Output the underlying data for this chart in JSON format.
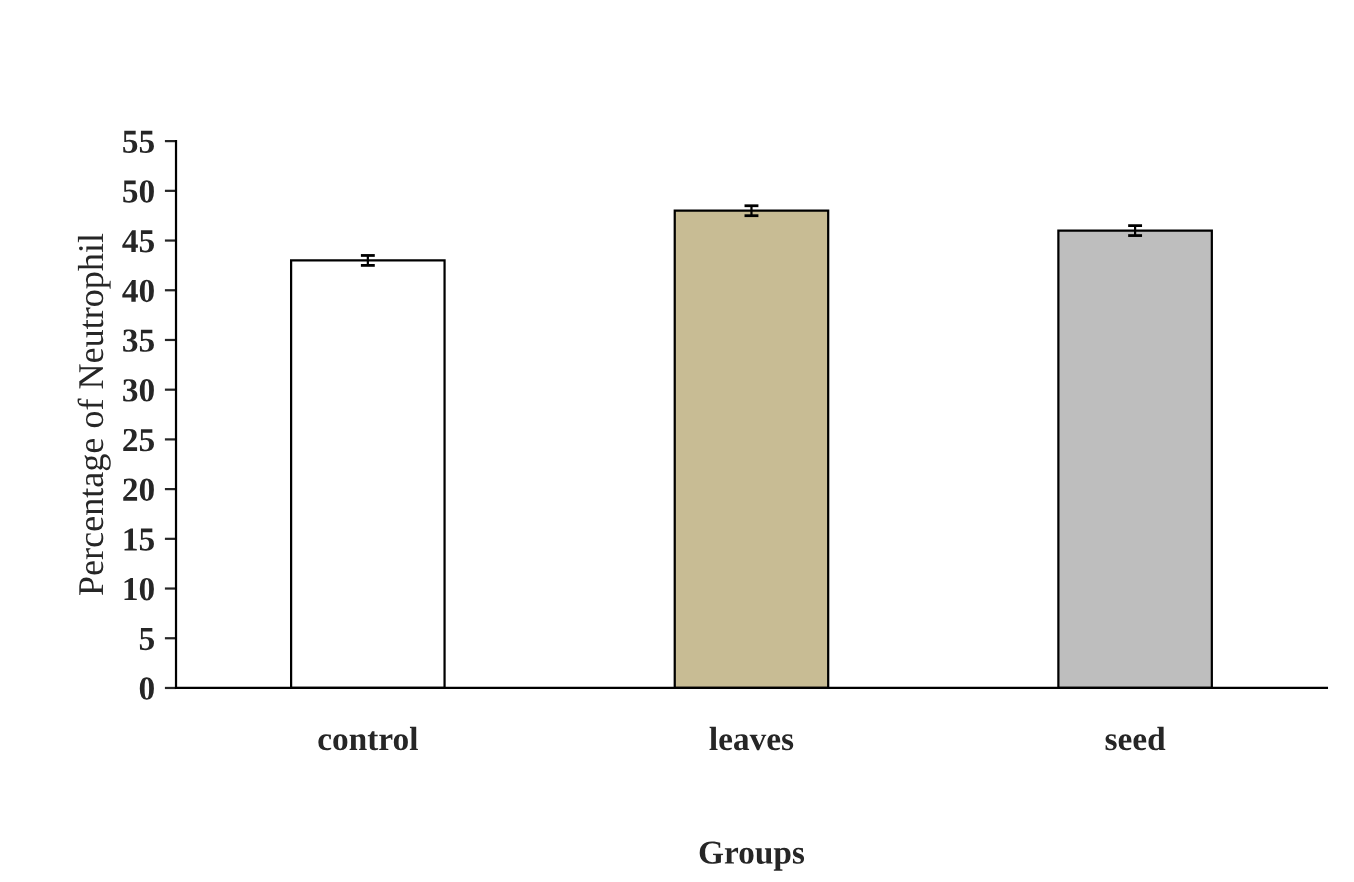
{
  "chart_data": {
    "type": "bar",
    "xlabel": "Groups",
    "ylabel": "Percentage of Neutrophil",
    "categories": [
      "control",
      "leaves",
      "seed"
    ],
    "values": [
      43,
      48,
      46
    ],
    "errors": [
      0.5,
      0.5,
      0.5
    ],
    "colors": [
      "#ffffff",
      "#c8bc94",
      "#bebebe"
    ],
    "ylim": [
      0,
      55
    ],
    "yticks": [
      0,
      5,
      10,
      15,
      20,
      25,
      30,
      35,
      40,
      45,
      50,
      55
    ],
    "grid": false
  }
}
